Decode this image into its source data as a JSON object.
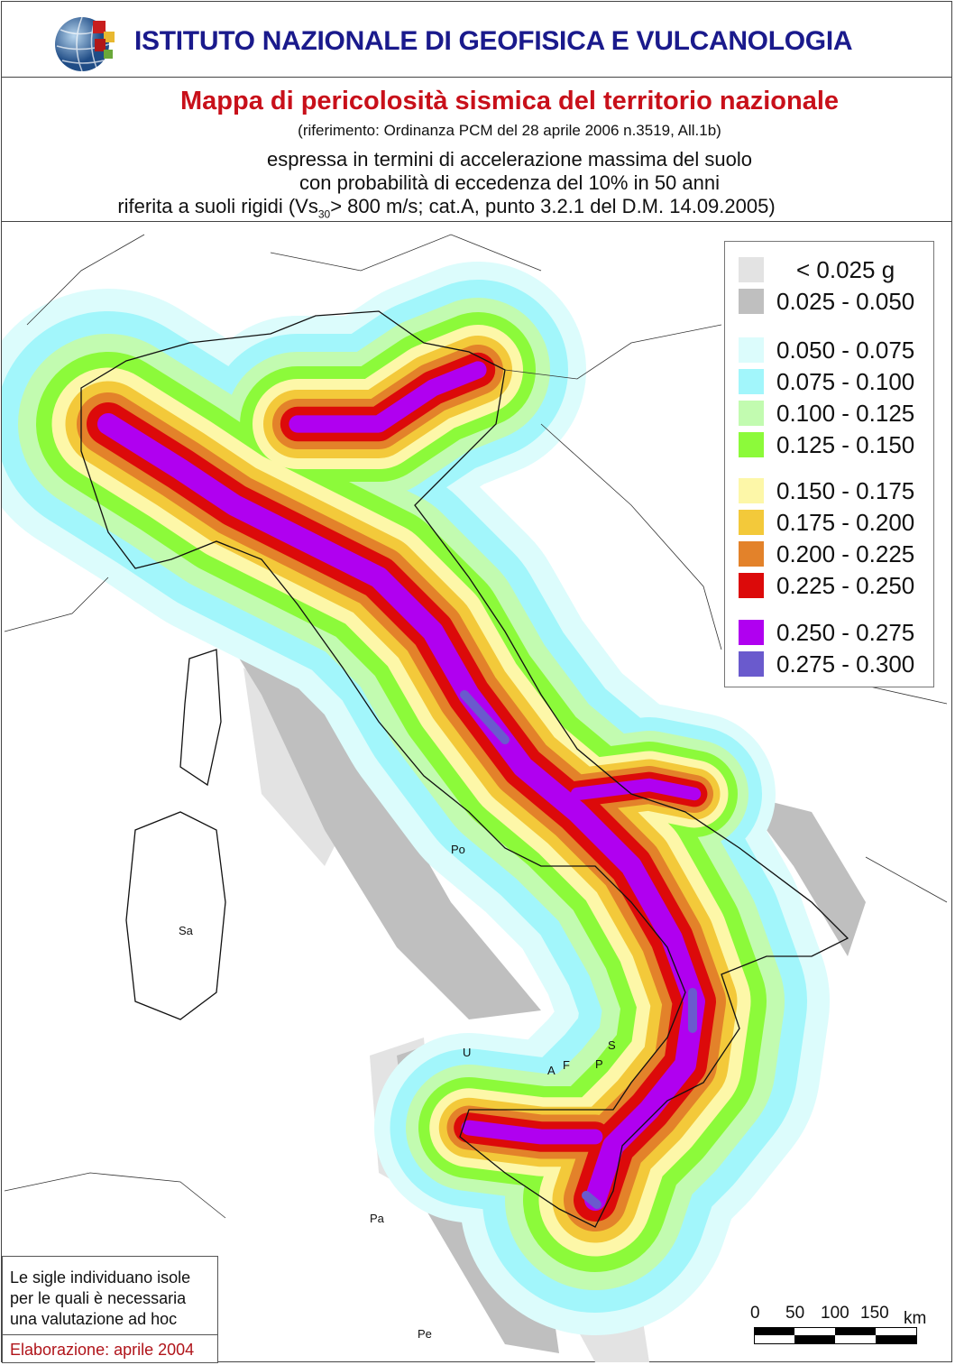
{
  "header": {
    "institute": "ISTITUTO NAZIONALE DI GEOFISICA E VULCANOLOGIA",
    "title": "Mappa di pericolosità sismica del territorio nazionale",
    "reference": "(riferimento: Ordinanza PCM del 28 aprile 2006 n.3519, All.1b)",
    "line1": "espressa in termini di accelerazione massima del suolo",
    "line2": "con probabilità di eccedenza del 10% in 50 anni",
    "line3a": "riferita a suoli rigidi (Vs",
    "line3sub": "30",
    "line3b": "> 800 m/s; cat.A, punto 3.2.1 del D.M. 14.09.2005)"
  },
  "legend": [
    {
      "label": "< 0.025 g",
      "color": "#e3e3e3"
    },
    {
      "label": "0.025 - 0.050",
      "color": "#bfbfbf"
    },
    {
      "label": "0.050 - 0.075",
      "color": "#dcfcfc"
    },
    {
      "label": "0.075 - 0.100",
      "color": "#a2f6fb"
    },
    {
      "label": "0.100 - 0.125",
      "color": "#c2fbb0"
    },
    {
      "label": "0.125 - 0.150",
      "color": "#8cfa3a"
    },
    {
      "label": "0.150 - 0.175",
      "color": "#fdf7a8"
    },
    {
      "label": "0.175 - 0.200",
      "color": "#f3c93a"
    },
    {
      "label": "0.200 - 0.225",
      "color": "#e3822a"
    },
    {
      "label": "0.225 - 0.250",
      "color": "#dc0a0a"
    },
    {
      "label": "0.250 - 0.275",
      "color": "#b000f0"
    },
    {
      "label": "0.275 - 0.300",
      "color": "#6a5acd"
    }
  ],
  "islands": [
    "Po",
    "Sa",
    "U",
    "A",
    "F",
    "P",
    "S",
    "Pa",
    "Pe"
  ],
  "note": {
    "text": [
      "Le sigle individuano isole",
      "per le quali è necessaria",
      "una valutazione ad hoc"
    ],
    "elaboration": "Elaborazione: aprile 2004"
  },
  "scale": {
    "ticks": [
      "0",
      "50",
      "100",
      "150"
    ],
    "unit": "km"
  }
}
